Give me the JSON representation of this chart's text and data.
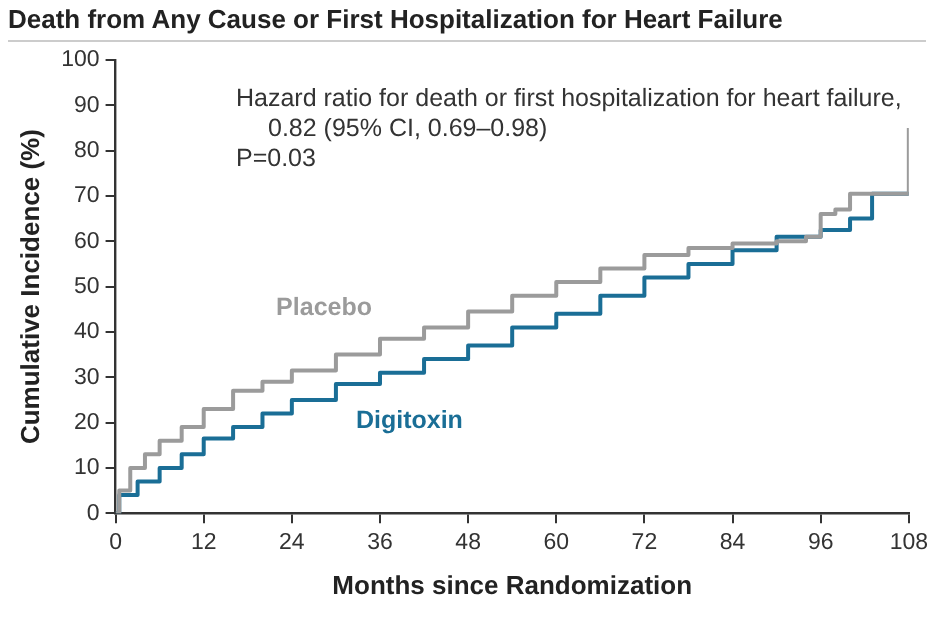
{
  "chart_data": {
    "type": "step",
    "title": "Death from Any Cause or First Hospitalization for Heart Failure",
    "xlabel": "Months since Randomization",
    "ylabel": "Cumulative Incidence (%)",
    "annotations": [
      "Hazard ratio for death or first hospitalization for heart failure, 0.82 (95% CI, 0.69–0.98)",
      "P=0.03"
    ],
    "series": [
      {
        "name": "Placebo",
        "color": "#9b9b9b",
        "x": [
          0,
          0.5,
          2,
          4,
          6,
          9,
          12,
          16,
          20,
          24,
          30,
          36,
          42,
          48,
          54,
          60,
          66,
          72,
          78,
          84,
          90,
          94,
          96,
          98,
          100,
          102,
          108,
          108
        ],
        "values": [
          0,
          5,
          10,
          13,
          16,
          19,
          23,
          27,
          29,
          31.5,
          35,
          38.5,
          41,
          44.5,
          48,
          51,
          54,
          57,
          58.5,
          59.5,
          60,
          61,
          66,
          67,
          70.5,
          70.5,
          70.5,
          85
        ]
      },
      {
        "name": "Digitoxin",
        "color": "#1a6e96",
        "x": [
          0,
          0.5,
          3,
          6,
          9,
          12,
          16,
          20,
          24,
          30,
          36,
          42,
          48,
          54,
          60,
          66,
          72,
          78,
          84,
          90,
          96,
          100,
          103,
          108
        ],
        "values": [
          0,
          4,
          7,
          10,
          13,
          16.5,
          19,
          22,
          25,
          28.5,
          31,
          34,
          37,
          41,
          44,
          48,
          52,
          55,
          58,
          61,
          62.5,
          65,
          70.5,
          70.5
        ]
      }
    ],
    "xlim": [
      0,
      108
    ],
    "xticks": [
      0,
      12,
      24,
      36,
      48,
      60,
      72,
      84,
      96,
      108
    ],
    "ylim": [
      0,
      100
    ],
    "yticks": [
      0,
      10,
      20,
      30,
      40,
      50,
      60,
      70,
      80,
      90,
      100
    ],
    "grid": false,
    "legend": false,
    "marker": "none",
    "line_style": "solid"
  }
}
